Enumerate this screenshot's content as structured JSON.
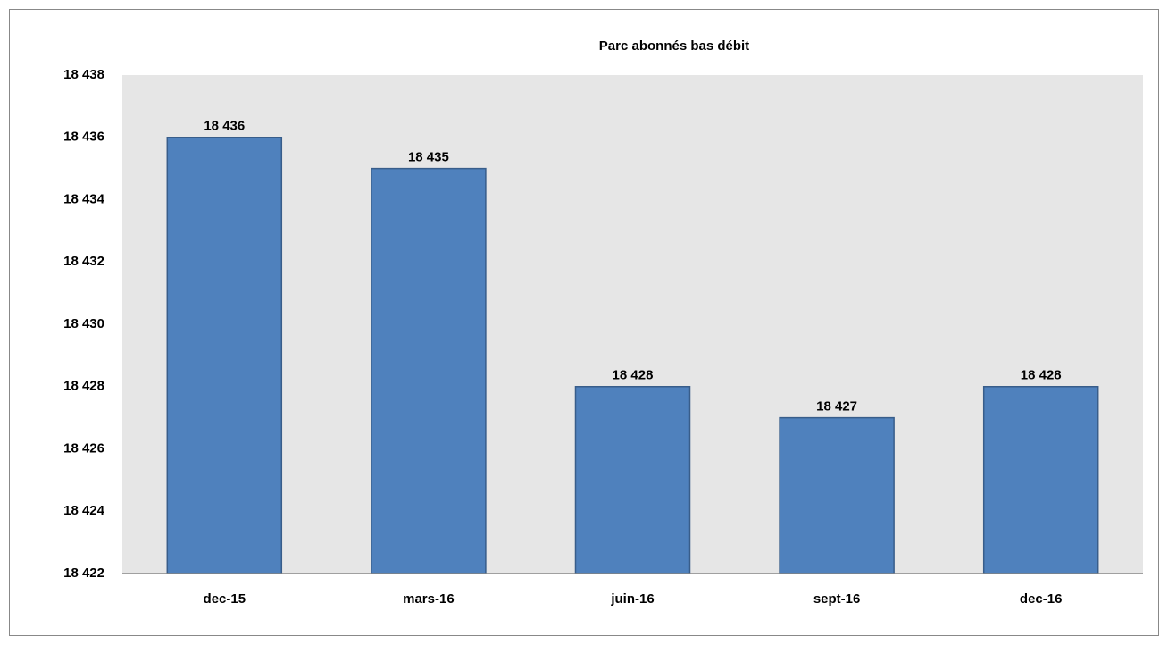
{
  "chart_data": {
    "type": "bar",
    "title": "Parc abonnés bas débit",
    "categories": [
      "dec-15",
      "mars-16",
      "juin-16",
      "sept-16",
      "dec-16"
    ],
    "values": [
      18436,
      18435,
      18428,
      18427,
      18428
    ],
    "value_labels": [
      "18 436",
      "18 435",
      "18 428",
      "18 427",
      "18 428"
    ],
    "color": "#4f81bd",
    "ylim": [
      18422,
      18438
    ],
    "yticks": [
      {
        "value": 18422,
        "label": "18 422"
      },
      {
        "value": 18424,
        "label": "18 424"
      },
      {
        "value": 18426,
        "label": "18 426"
      },
      {
        "value": 18428,
        "label": "18 428"
      },
      {
        "value": 18430,
        "label": "18 430"
      },
      {
        "value": 18432,
        "label": "18 432"
      },
      {
        "value": 18434,
        "label": "18 434"
      },
      {
        "value": 18436,
        "label": "18 436"
      },
      {
        "value": 18438,
        "label": "18 438"
      }
    ],
    "grid": false
  }
}
